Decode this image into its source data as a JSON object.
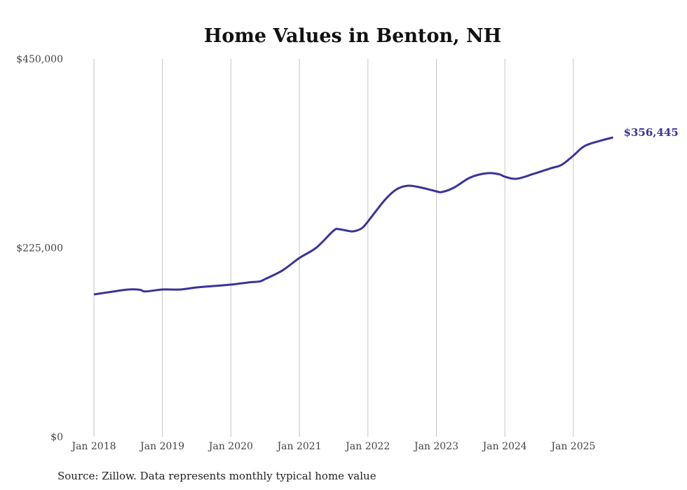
{
  "chart_data": {
    "type": "line",
    "title": "Home Values in Benton, NH",
    "xlabel": "",
    "ylabel": "",
    "ylim": [
      0,
      450000
    ],
    "xlim": [
      2018.0,
      2025.6
    ],
    "y_ticks": [
      {
        "value": 0,
        "label": "$0"
      },
      {
        "value": 225000,
        "label": "$225,000"
      },
      {
        "value": 450000,
        "label": "$450,000"
      }
    ],
    "x_ticks": [
      {
        "value": 2018,
        "label": "Jan 2018"
      },
      {
        "value": 2019,
        "label": "Jan 2019"
      },
      {
        "value": 2020,
        "label": "Jan 2020"
      },
      {
        "value": 2021,
        "label": "Jan 2021"
      },
      {
        "value": 2022,
        "label": "Jan 2022"
      },
      {
        "value": 2023,
        "label": "Jan 2023"
      },
      {
        "value": 2024,
        "label": "Jan 2024"
      },
      {
        "value": 2025,
        "label": "Jan 2025"
      }
    ],
    "grid": "vertical",
    "series": [
      {
        "name": "Typical home value",
        "color": "#3a3399",
        "x": [
          2018.0,
          2018.25,
          2018.5,
          2018.67,
          2018.75,
          2019.0,
          2019.25,
          2019.5,
          2019.75,
          2020.0,
          2020.25,
          2020.42,
          2020.5,
          2020.75,
          2021.0,
          2021.25,
          2021.5,
          2021.58,
          2021.75,
          2021.83,
          2021.92,
          2022.0,
          2022.25,
          2022.42,
          2022.58,
          2022.75,
          2022.92,
          2023.0,
          2023.08,
          2023.25,
          2023.5,
          2023.75,
          2023.92,
          2024.0,
          2024.17,
          2024.42,
          2024.67,
          2024.83,
          2025.0,
          2025.17,
          2025.42,
          2025.58
        ],
        "values": [
          169500,
          172500,
          175300,
          175000,
          173000,
          175300,
          175300,
          177800,
          179500,
          181200,
          183700,
          185000,
          187800,
          197900,
          212900,
          225400,
          245500,
          247100,
          244600,
          245400,
          248800,
          256300,
          282200,
          294700,
          298900,
          297200,
          293900,
          292200,
          291400,
          296400,
          308900,
          313900,
          312500,
          309700,
          307200,
          313100,
          319700,
          323900,
          334800,
          346500,
          353100,
          356445
        ]
      }
    ],
    "end_label": "$356,445",
    "source": "Source: Zillow. Data represents monthly typical home value"
  }
}
